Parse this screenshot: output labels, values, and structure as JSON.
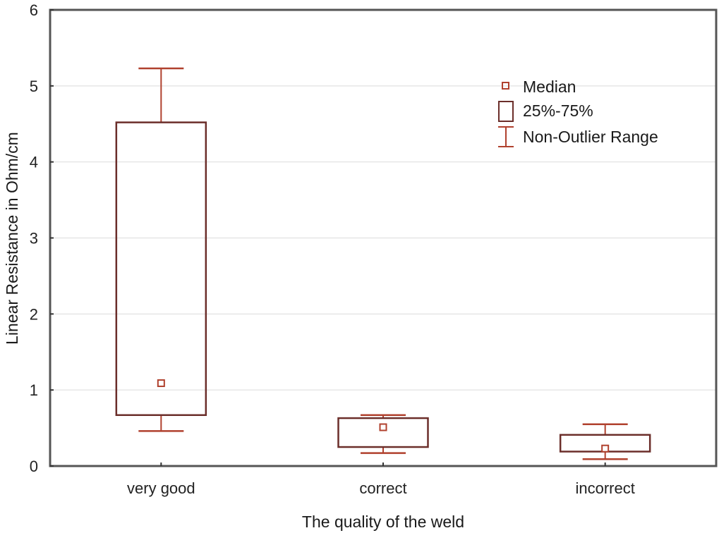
{
  "chart_data": {
    "type": "box",
    "title": "",
    "xlabel": "The quality of the weld",
    "ylabel": "Linear Resistance in Ohm/cm",
    "ylim": [
      0,
      6
    ],
    "yticks": [
      0,
      1,
      2,
      3,
      4,
      5,
      6
    ],
    "grid": "horizontal",
    "categories": [
      "very good",
      "correct",
      "incorrect"
    ],
    "series": [
      {
        "category": "very good",
        "median": 1.09,
        "q1": 0.67,
        "q3": 4.52,
        "whisker_low": 0.46,
        "whisker_high": 5.23
      },
      {
        "category": "correct",
        "median": 0.51,
        "q1": 0.25,
        "q3": 0.63,
        "whisker_low": 0.17,
        "whisker_high": 0.67
      },
      {
        "category": "incorrect",
        "median": 0.23,
        "q1": 0.19,
        "q3": 0.41,
        "whisker_low": 0.09,
        "whisker_high": 0.55
      }
    ],
    "legend": {
      "position": "upper right inside",
      "entries": [
        {
          "symbol": "small-square",
          "label": "Median"
        },
        {
          "symbol": "box",
          "label": "25%-75%"
        },
        {
          "symbol": "whisker",
          "label": "Non-Outlier Range"
        }
      ]
    },
    "colors": {
      "box": "#6b2e2a",
      "whisker": "#b0412e",
      "median": "#b0412e",
      "axis": "#555555",
      "grid": "#e6e6e6"
    }
  }
}
